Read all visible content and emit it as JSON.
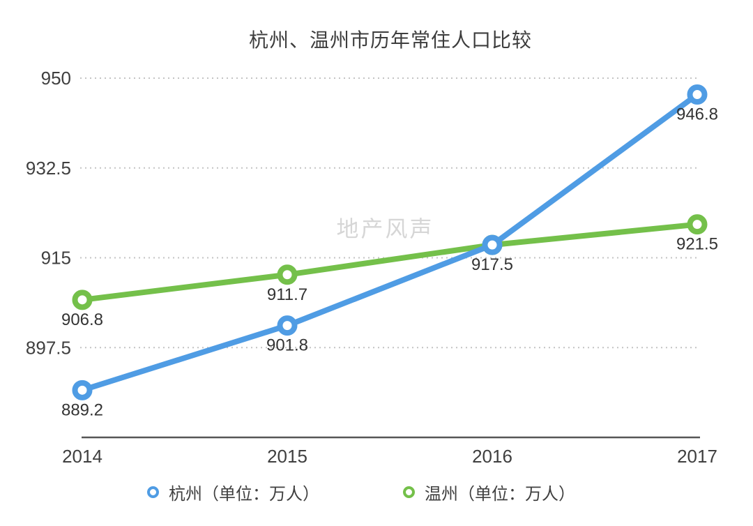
{
  "title": "杭州、温州市历年常住人口比较",
  "watermark": "地产风声",
  "colors": {
    "hangzhou": "#4f9ce4",
    "wenzhou": "#74c04a",
    "grid": "#c3c3c3",
    "axis": "#565656",
    "tick_text": "#3f3f3f",
    "point_label_text": "#333333",
    "watermark_text": "#d6d6d6"
  },
  "legend": [
    {
      "label": "杭州（单位：万人）",
      "series": "hangzhou"
    },
    {
      "label": "温州（单位：万人）",
      "series": "wenzhou"
    }
  ],
  "chart_data": {
    "type": "line",
    "title": "杭州、温州市历年常住人口比较",
    "categories": [
      "2014",
      "2015",
      "2016",
      "2017"
    ],
    "series": [
      {
        "name": "温州",
        "color_key": "wenzhou",
        "values": [
          906.8,
          911.7,
          917.5,
          921.5
        ],
        "point_labels": [
          "906.8",
          "911.7",
          null,
          "921.5"
        ]
      },
      {
        "name": "杭州",
        "color_key": "hangzhou",
        "values": [
          889.2,
          901.8,
          917.5,
          946.8
        ],
        "point_labels": [
          "889.2",
          "901.8",
          "917.5",
          "946.8"
        ]
      }
    ],
    "yticks": [
      "950",
      "932.5",
      "915",
      "897.5"
    ],
    "ylim": [
      880,
      950
    ],
    "unit": "万人",
    "grid": "dashed-horizontal",
    "legend_position": "bottom",
    "watermark": "地产风声"
  }
}
